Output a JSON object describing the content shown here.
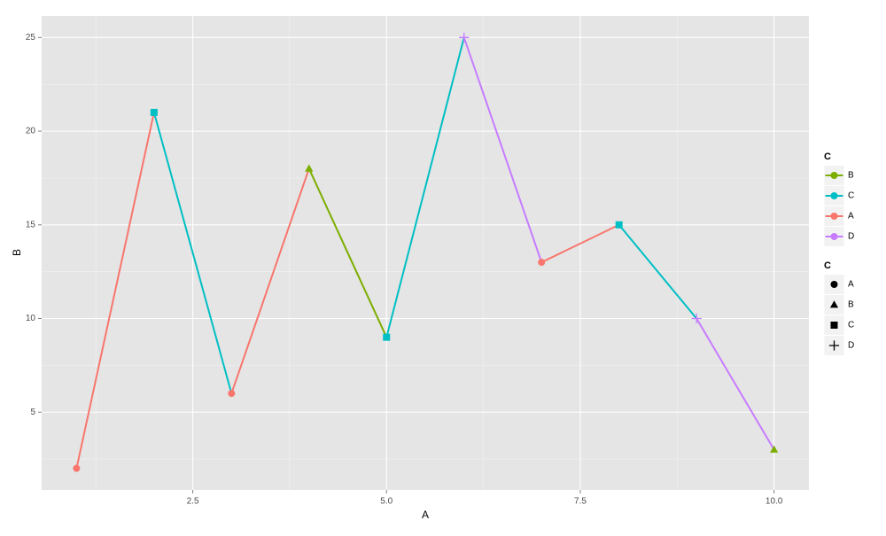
{
  "chart_data": {
    "type": "line",
    "x_label": "A",
    "y_label": "B",
    "x": [
      1,
      2,
      3,
      4,
      5,
      6,
      7,
      8,
      9,
      10
    ],
    "values": [
      2,
      21,
      6,
      18,
      9,
      25,
      13,
      15,
      10,
      3
    ],
    "groups": [
      "A",
      "C",
      "A",
      "B",
      "C",
      "D",
      "A",
      "C",
      "D",
      "B"
    ],
    "xlim": [
      0.55,
      10.45
    ],
    "ylim": [
      0.85,
      26.15
    ],
    "xticks": [
      2.5,
      {
        "value": 5,
        "label": "5.0"
      },
      7.5,
      {
        "value": 10,
        "label": "10.0"
      }
    ],
    "yticks": [
      5,
      10,
      15,
      20,
      25
    ],
    "grid": true,
    "legend_position": "right",
    "color_legend": {
      "title": "C",
      "entries": [
        {
          "name": "B",
          "color": "#7cae00"
        },
        {
          "name": "C",
          "color": "#00bfc4"
        },
        {
          "name": "A",
          "color": "#f8766d"
        },
        {
          "name": "D",
          "color": "#c77cff"
        }
      ]
    },
    "shape_legend": {
      "title": "C",
      "entries": [
        {
          "name": "A",
          "shape": "circle"
        },
        {
          "name": "B",
          "shape": "triangle"
        },
        {
          "name": "C",
          "shape": "square"
        },
        {
          "name": "D",
          "shape": "plus"
        }
      ]
    }
  }
}
